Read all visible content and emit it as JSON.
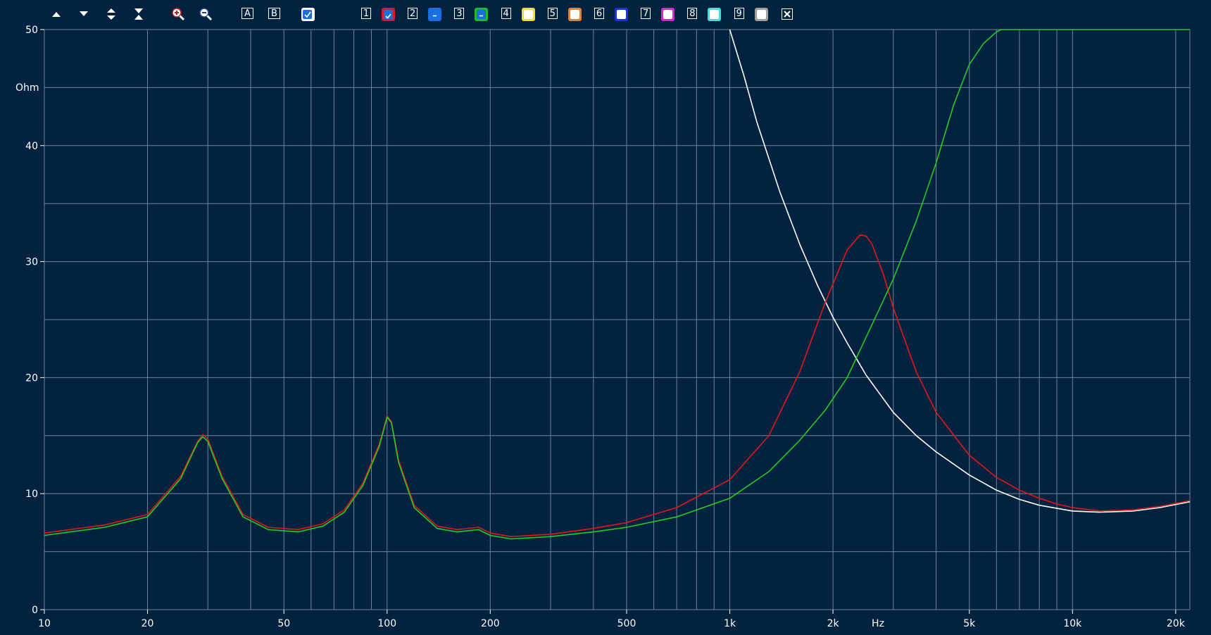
{
  "toolbar": {
    "buttons": [
      {
        "name": "scroll-up-button",
        "icon": "triangle-up-icon"
      },
      {
        "name": "scroll-down-button",
        "icon": "triangle-down-icon"
      },
      {
        "name": "expand-vertical-button",
        "icon": "expand-vertical-icon"
      },
      {
        "name": "compress-vertical-button",
        "icon": "compress-vertical-icon"
      },
      {
        "name": "zoom-in-button",
        "icon": "zoom-in-icon"
      },
      {
        "name": "zoom-out-button",
        "icon": "zoom-out-icon"
      }
    ],
    "cursor_a_label": "A",
    "cursor_b_label": "B",
    "channels": [
      {
        "label": "1",
        "color": "#e01818",
        "state": "checked"
      },
      {
        "label": "2",
        "color": "#1a6fe0",
        "state": "minus"
      },
      {
        "label": "3",
        "color": "#18c020",
        "state": "minus"
      },
      {
        "label": "4",
        "color": "#f0e020",
        "state": "empty"
      },
      {
        "label": "5",
        "color": "#f08020",
        "state": "empty"
      },
      {
        "label": "6",
        "color": "#1a30f0",
        "state": "empty"
      },
      {
        "label": "7",
        "color": "#e020e0",
        "state": "empty"
      },
      {
        "label": "8",
        "color": "#40e0e0",
        "state": "empty"
      },
      {
        "label": "9",
        "color": "#a0a0a0",
        "state": "empty"
      }
    ],
    "close_icon": "close-icon"
  },
  "chart_data": {
    "type": "line",
    "xscale": "log",
    "xlim": [
      10,
      22000
    ],
    "ylim": [
      0,
      50
    ],
    "x_unit_label": "Hz",
    "y_unit_label": "Ohm",
    "x_ticks": [
      {
        "value": 10,
        "label": "10"
      },
      {
        "value": 20,
        "label": "20"
      },
      {
        "value": 50,
        "label": "50"
      },
      {
        "value": 100,
        "label": "100"
      },
      {
        "value": 200,
        "label": "200"
      },
      {
        "value": 500,
        "label": "500"
      },
      {
        "value": 1000,
        "label": "1k"
      },
      {
        "value": 2000,
        "label": "2k"
      },
      {
        "value": 5000,
        "label": "5k"
      },
      {
        "value": 10000,
        "label": "10k"
      },
      {
        "value": 20000,
        "label": "20k"
      }
    ],
    "y_ticks": [
      {
        "value": 0,
        "label": "0"
      },
      {
        "value": 10,
        "label": "10"
      },
      {
        "value": 20,
        "label": "20"
      },
      {
        "value": 30,
        "label": "30"
      },
      {
        "value": 40,
        "label": "40"
      },
      {
        "value": 50,
        "label": "50"
      }
    ],
    "grid": true,
    "series": [
      {
        "color": "#ffffff",
        "x": [
          1000,
          1100,
          1200,
          1400,
          1600,
          1800,
          2000,
          2200,
          2500,
          3000,
          3500,
          4000,
          5000,
          6000,
          7000,
          8000,
          10000,
          12000,
          15000,
          18000,
          22000
        ],
        "y": [
          50,
          46,
          42,
          36,
          31.5,
          28,
          25.2,
          23,
          20.2,
          17,
          15,
          13.6,
          11.6,
          10.3,
          9.5,
          9.0,
          8.5,
          8.4,
          8.5,
          8.8,
          9.3
        ]
      },
      {
        "color": "#e01818",
        "x": [
          10,
          15,
          20,
          25,
          28,
          29,
          30,
          33,
          38,
          45,
          55,
          65,
          75,
          85,
          95,
          100,
          103,
          108,
          120,
          140,
          160,
          185,
          200,
          230,
          300,
          400,
          500,
          700,
          1000,
          1300,
          1600,
          1900,
          2200,
          2400,
          2500,
          2600,
          2800,
          3000,
          3500,
          4000,
          5000,
          6000,
          7000,
          8000,
          9000,
          10000,
          12000,
          15000,
          18000,
          22000
        ],
        "y": [
          6.6,
          7.3,
          8.2,
          11.5,
          14.5,
          15.1,
          14.7,
          11.5,
          8.2,
          7.1,
          6.9,
          7.4,
          8.6,
          10.9,
          14.3,
          16.7,
          16.2,
          12.9,
          9.0,
          7.2,
          6.9,
          7.1,
          6.6,
          6.3,
          6.5,
          7.0,
          7.5,
          8.8,
          11.2,
          15.0,
          20.5,
          26.5,
          31.0,
          32.3,
          32.2,
          31.5,
          29.0,
          26.0,
          20.5,
          17.0,
          13.3,
          11.4,
          10.3,
          9.6,
          9.1,
          8.8,
          8.5,
          8.6,
          8.9,
          9.4
        ]
      },
      {
        "color": "#22cc22",
        "x": [
          10,
          15,
          20,
          25,
          28,
          29,
          30,
          33,
          38,
          45,
          55,
          65,
          75,
          85,
          95,
          100,
          103,
          108,
          120,
          140,
          160,
          185,
          200,
          230,
          300,
          400,
          500,
          700,
          1000,
          1300,
          1600,
          1900,
          2200,
          2500,
          3000,
          3500,
          4000,
          4500,
          5000,
          5500,
          6000,
          6200,
          10000,
          22000
        ],
        "y": [
          6.4,
          7.1,
          8.0,
          11.3,
          14.4,
          14.9,
          14.5,
          11.3,
          8.0,
          6.9,
          6.7,
          7.2,
          8.4,
          10.7,
          14.1,
          16.6,
          16.1,
          12.7,
          8.8,
          7.0,
          6.7,
          6.9,
          6.4,
          6.1,
          6.3,
          6.7,
          7.1,
          8.0,
          9.6,
          11.9,
          14.6,
          17.2,
          20.0,
          23.5,
          28.5,
          33.5,
          38.5,
          43.5,
          47.0,
          48.8,
          49.8,
          50,
          50,
          50
        ]
      }
    ]
  }
}
